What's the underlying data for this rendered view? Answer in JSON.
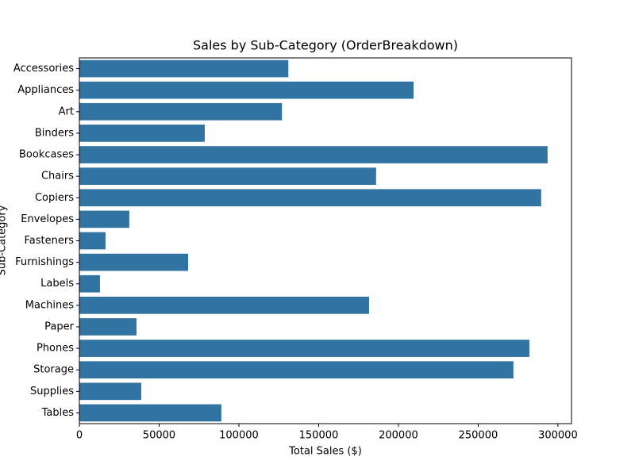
{
  "chart_data": {
    "type": "barh",
    "title": "Sales by Sub-Category (OrderBreakdown)",
    "x_label": "Total Sales ($)",
    "y_label": "Sub-Category",
    "categories": [
      "Accessories",
      "Appliances",
      "Art",
      "Binders",
      "Bookcases",
      "Chairs",
      "Copiers",
      "Envelopes",
      "Fasteners",
      "Furnishings",
      "Labels",
      "Machines",
      "Paper",
      "Phones",
      "Storage",
      "Supplies",
      "Tables"
    ],
    "values": [
      131000,
      209500,
      127000,
      78600,
      293500,
      186000,
      289500,
      31300,
      16400,
      68200,
      12900,
      181600,
      35800,
      282100,
      272100,
      38800,
      89000
    ],
    "color": "#3274a1",
    "xlim": [
      0,
      308500
    ],
    "xticks": [
      0,
      50000,
      100000,
      150000,
      200000,
      250000,
      300000
    ]
  }
}
